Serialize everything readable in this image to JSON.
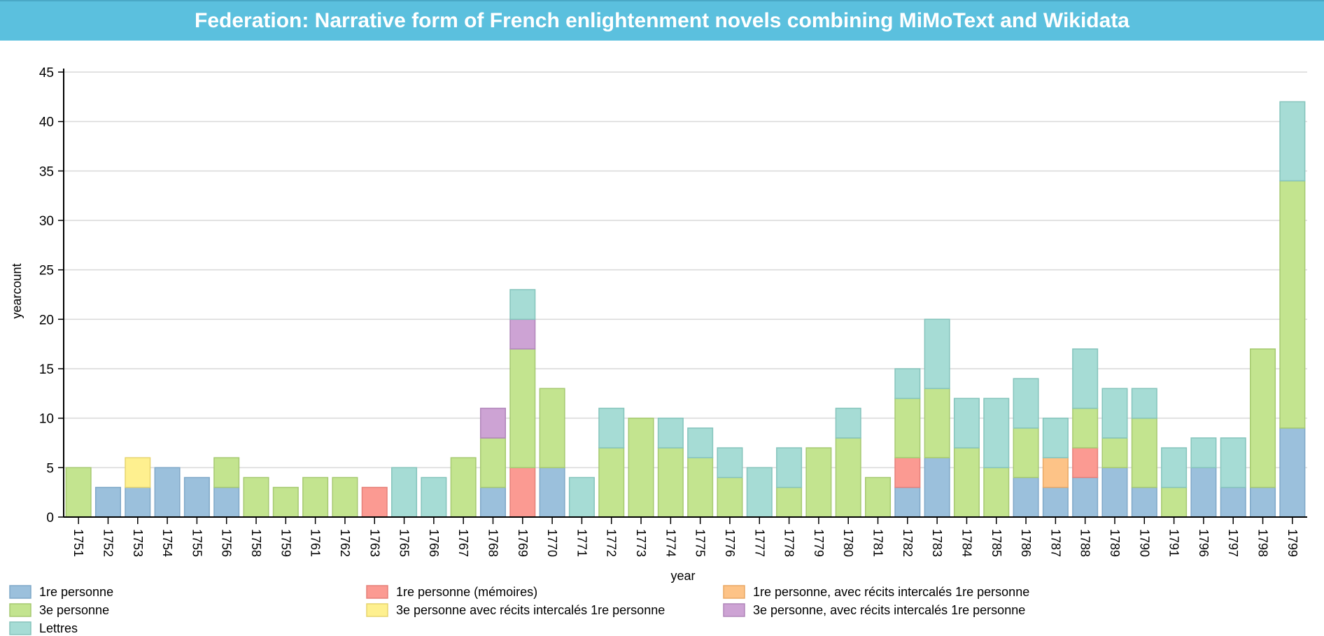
{
  "header": {
    "title": "Federation: Narrative form of French enlightenment novels combining MiMoText and Wikidata"
  },
  "chart_data": {
    "type": "bar",
    "stacked": true,
    "xlabel": "year",
    "ylabel": "yearcount",
    "ylim": [
      0,
      45
    ],
    "yticks": [
      0,
      5,
      10,
      15,
      20,
      25,
      30,
      35,
      40,
      45
    ],
    "grid": true,
    "legend_position": "bottom",
    "categories": [
      "1751",
      "1752",
      "1753",
      "1754",
      "1755",
      "1756",
      "1758",
      "1759",
      "1761",
      "1762",
      "1763",
      "1765",
      "1766",
      "1767",
      "1768",
      "1769",
      "1770",
      "1771",
      "1772",
      "1773",
      "1774",
      "1775",
      "1776",
      "1777",
      "1778",
      "1779",
      "1780",
      "1781",
      "1782",
      "1783",
      "1784",
      "1785",
      "1786",
      "1787",
      "1788",
      "1789",
      "1790",
      "1791",
      "1796",
      "1797",
      "1798",
      "1799"
    ],
    "series": [
      {
        "name": "1re personne",
        "color": "#9bc0dc",
        "stroke": "#7fa8c8",
        "values": [
          0,
          3,
          3,
          5,
          4,
          3,
          0,
          0,
          0,
          0,
          0,
          0,
          0,
          0,
          3,
          0,
          5,
          0,
          0,
          0,
          0,
          0,
          0,
          0,
          0,
          0,
          0,
          0,
          3,
          6,
          0,
          0,
          4,
          3,
          4,
          5,
          3,
          0,
          5,
          3,
          3,
          9
        ]
      },
      {
        "name": "1re personne (mémoires)",
        "color": "#fb9a92",
        "stroke": "#e58079",
        "values": [
          0,
          0,
          0,
          0,
          0,
          0,
          0,
          0,
          0,
          0,
          3,
          0,
          0,
          0,
          0,
          5,
          0,
          0,
          0,
          0,
          0,
          0,
          0,
          0,
          0,
          0,
          0,
          0,
          3,
          0,
          0,
          0,
          0,
          0,
          3,
          0,
          0,
          0,
          0,
          0,
          0,
          0
        ]
      },
      {
        "name": "1re personne, avec récits intercalés 1re personne",
        "color": "#fdc387",
        "stroke": "#e8a865",
        "values": [
          0,
          0,
          0,
          0,
          0,
          0,
          0,
          0,
          0,
          0,
          0,
          0,
          0,
          0,
          0,
          0,
          0,
          0,
          0,
          0,
          0,
          0,
          0,
          0,
          0,
          0,
          0,
          0,
          0,
          0,
          0,
          0,
          0,
          3,
          0,
          0,
          0,
          0,
          0,
          0,
          0,
          0
        ]
      },
      {
        "name": "3e personne",
        "color": "#c3e48f",
        "stroke": "#a6c971",
        "values": [
          5,
          0,
          0,
          0,
          0,
          3,
          4,
          3,
          4,
          4,
          0,
          0,
          0,
          6,
          5,
          12,
          8,
          0,
          7,
          10,
          7,
          6,
          4,
          0,
          3,
          7,
          8,
          4,
          6,
          7,
          7,
          5,
          5,
          0,
          4,
          3,
          7,
          3,
          0,
          0,
          14,
          25
        ]
      },
      {
        "name": "3e personne avec récits intercalés 1re personne",
        "color": "#fef08f",
        "stroke": "#e6d46f",
        "values": [
          0,
          0,
          3,
          0,
          0,
          0,
          0,
          0,
          0,
          0,
          0,
          0,
          0,
          0,
          0,
          0,
          0,
          0,
          0,
          0,
          0,
          0,
          0,
          0,
          0,
          0,
          0,
          0,
          0,
          0,
          0,
          0,
          0,
          0,
          0,
          0,
          0,
          0,
          0,
          0,
          0,
          0
        ]
      },
      {
        "name": "3e personne, avec récits intercalés 1re personne",
        "color": "#cda3d4",
        "stroke": "#b186ba",
        "values": [
          0,
          0,
          0,
          0,
          0,
          0,
          0,
          0,
          0,
          0,
          0,
          0,
          0,
          0,
          3,
          3,
          0,
          0,
          0,
          0,
          0,
          0,
          0,
          0,
          0,
          0,
          0,
          0,
          0,
          0,
          0,
          0,
          0,
          0,
          0,
          0,
          0,
          0,
          0,
          0,
          0,
          0
        ]
      },
      {
        "name": "Lettres",
        "color": "#a6dcd5",
        "stroke": "#85c4bc",
        "values": [
          0,
          0,
          0,
          0,
          0,
          0,
          0,
          0,
          0,
          0,
          0,
          5,
          4,
          0,
          0,
          3,
          0,
          4,
          4,
          0,
          3,
          3,
          3,
          5,
          4,
          0,
          3,
          0,
          3,
          7,
          5,
          7,
          5,
          4,
          6,
          5,
          3,
          4,
          3,
          5,
          0,
          8
        ]
      }
    ]
  }
}
